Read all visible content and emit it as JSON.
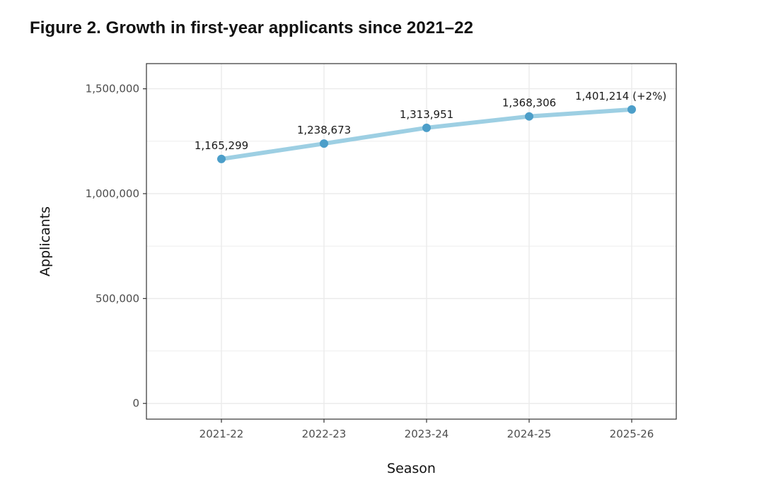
{
  "figure": {
    "title": "Figure 2. Growth in first-year applicants since 2021–22"
  },
  "chart_data": {
    "type": "line",
    "categories": [
      "2021-22",
      "2022-23",
      "2023-24",
      "2024-25",
      "2025-26"
    ],
    "series": [
      {
        "values": [
          1165299,
          1238673,
          1313951,
          1368306,
          1401214
        ],
        "labels": [
          "1,165,299",
          "1,238,673",
          "1,313,951",
          "1,368,306",
          "1,401,214 (+2%)"
        ]
      }
    ],
    "xlabel": "Season",
    "ylabel": "Applicants",
    "ylim": [
      -75000,
      1620000
    ],
    "yticks": [
      0,
      500000,
      1000000,
      1500000
    ],
    "ytick_labels": [
      "0",
      "500,000",
      "1,000,000",
      "1,500,000"
    ],
    "grid": true,
    "colors": {
      "line": "#9dcfe3",
      "point": "#4c9ec9",
      "grid": "#ebebeb",
      "border": "#333333"
    }
  }
}
